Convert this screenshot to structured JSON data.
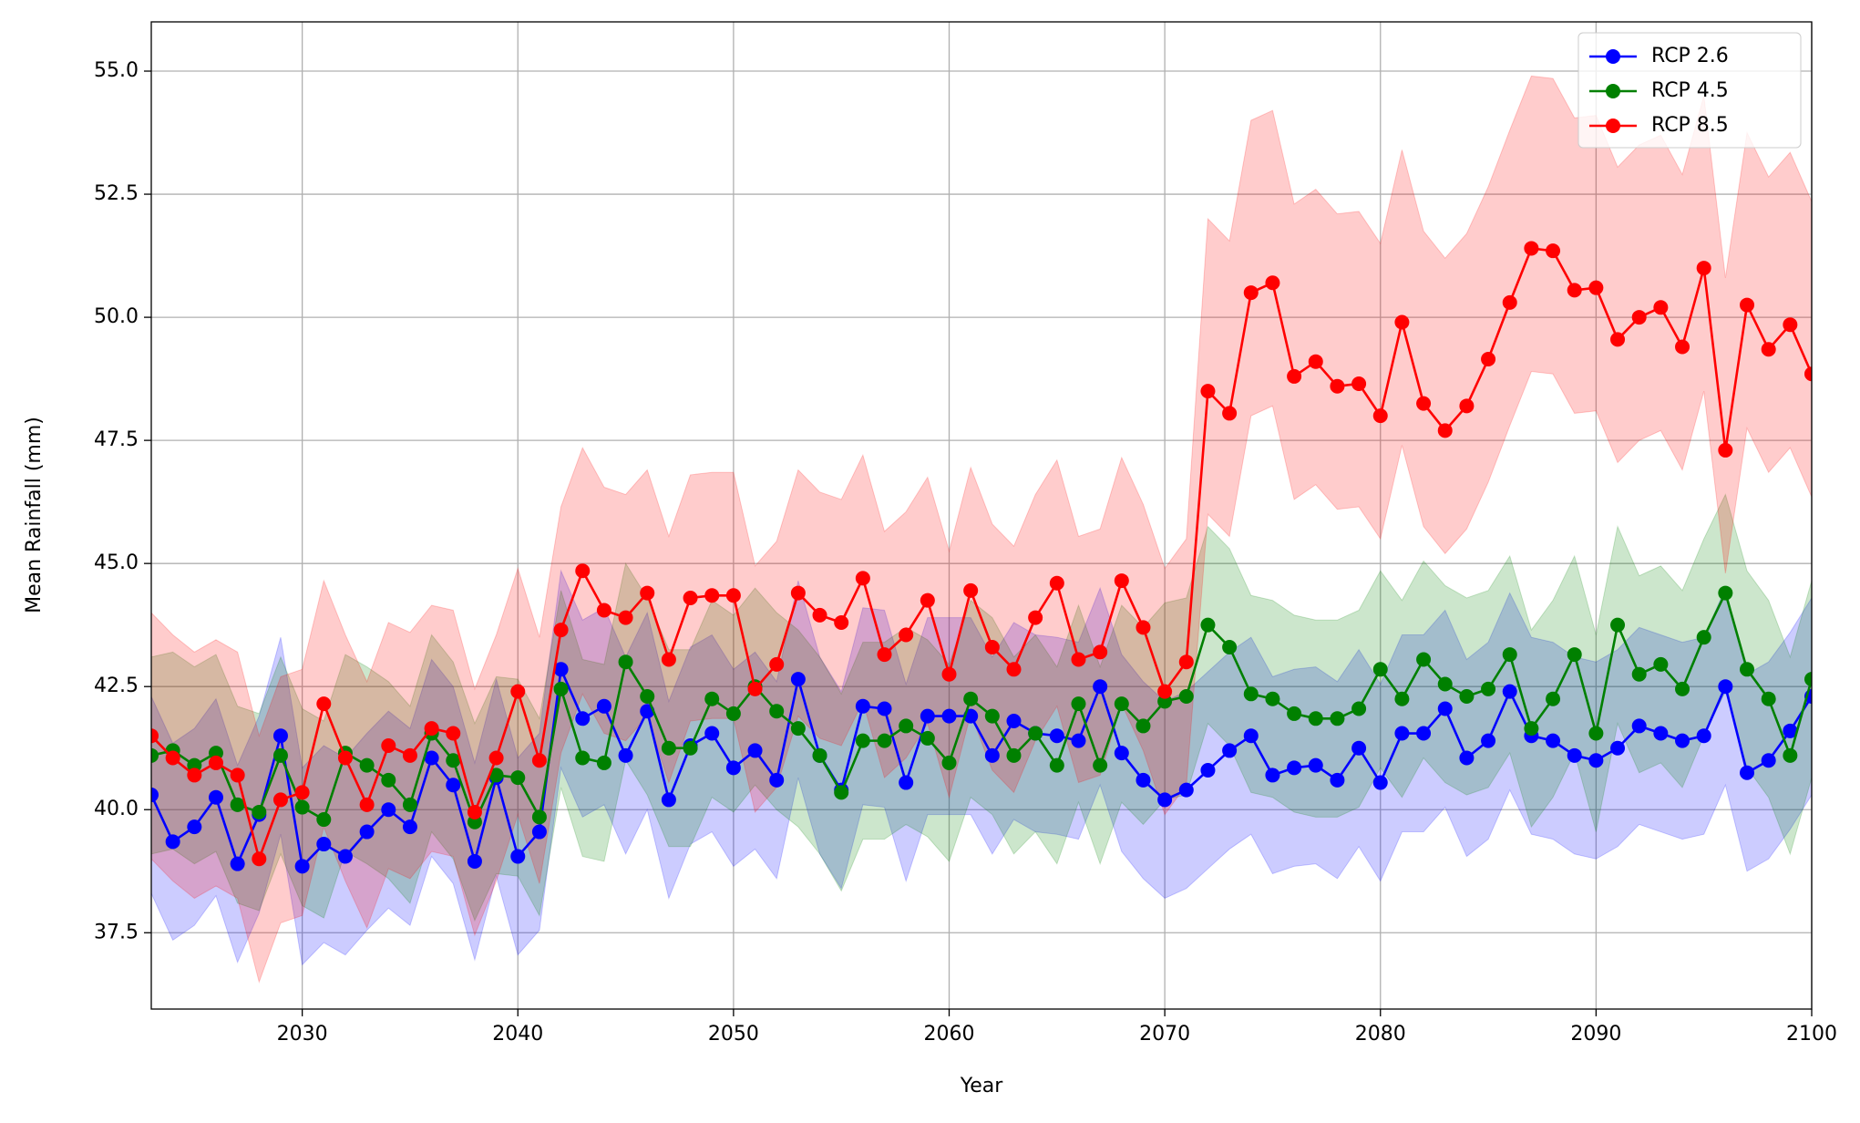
{
  "chart_data": {
    "type": "line",
    "x_label": "Year",
    "y_label": "Mean Rainfall (mm)",
    "x": [
      2023,
      2024,
      2025,
      2026,
      2027,
      2028,
      2029,
      2030,
      2031,
      2032,
      2033,
      2034,
      2035,
      2036,
      2037,
      2038,
      2039,
      2040,
      2041,
      2042,
      2043,
      2044,
      2045,
      2046,
      2047,
      2048,
      2049,
      2050,
      2051,
      2052,
      2053,
      2054,
      2055,
      2056,
      2057,
      2058,
      2059,
      2060,
      2061,
      2062,
      2063,
      2064,
      2065,
      2066,
      2067,
      2068,
      2069,
      2070,
      2071,
      2072,
      2073,
      2074,
      2075,
      2076,
      2077,
      2078,
      2079,
      2080,
      2081,
      2082,
      2083,
      2084,
      2085,
      2086,
      2087,
      2088,
      2089,
      2090,
      2091,
      2092,
      2093,
      2094,
      2095,
      2096,
      2097,
      2098,
      2099,
      2100
    ],
    "xlim": [
      2023,
      2100
    ],
    "xticks": [
      2030,
      2040,
      2050,
      2060,
      2070,
      2080,
      2090,
      2100
    ],
    "ylim": [
      35.95,
      56.0
    ],
    "yticks": [
      37.5,
      {
        "value": 40,
        "label": "40.0"
      },
      42.5,
      {
        "value": 45,
        "label": "45.0"
      },
      47.5,
      {
        "value": 50,
        "label": "50.0"
      },
      52.5,
      {
        "value": 55,
        "label": "55.0"
      }
    ],
    "grid": true,
    "legend": "upper right",
    "series": [
      {
        "name": "RCP 2.6",
        "color": "#0000ff",
        "values": [
          40.3,
          39.35,
          39.65,
          40.25,
          38.9,
          39.9,
          41.5,
          38.85,
          39.3,
          39.05,
          39.55,
          40.0,
          39.65,
          41.05,
          40.5,
          38.95,
          40.65,
          39.05,
          39.55,
          42.85,
          41.85,
          42.1,
          41.1,
          42.0,
          40.2,
          41.3,
          41.55,
          40.85,
          41.2,
          40.6,
          42.65,
          41.1,
          40.4,
          42.1,
          42.05,
          40.55,
          41.9,
          41.9,
          41.9,
          41.1,
          41.8,
          41.55,
          41.5,
          41.4,
          42.5,
          41.15,
          40.6,
          40.2,
          40.4,
          40.8,
          41.2,
          41.5,
          40.7,
          40.85,
          40.9,
          40.6,
          41.25,
          40.55,
          41.55,
          41.55,
          42.05,
          41.05,
          41.4,
          42.4,
          41.5,
          41.4,
          41.1,
          41.0,
          41.25,
          41.7,
          41.55,
          41.4,
          41.5,
          42.5,
          40.75,
          41.0,
          41.6,
          42.3
        ],
        "lower": [
          38.3,
          37.35,
          37.65,
          38.25,
          36.9,
          37.9,
          39.5,
          36.85,
          37.3,
          37.05,
          37.55,
          38.0,
          37.65,
          39.05,
          38.5,
          36.95,
          38.65,
          37.05,
          37.55,
          40.85,
          39.85,
          40.1,
          39.1,
          40.0,
          38.2,
          39.3,
          39.55,
          38.85,
          39.2,
          38.6,
          40.65,
          39.1,
          38.4,
          40.1,
          40.05,
          38.55,
          39.9,
          39.9,
          39.9,
          39.1,
          39.8,
          39.55,
          39.5,
          39.4,
          40.5,
          39.15,
          38.6,
          38.2,
          38.4,
          38.8,
          39.2,
          39.5,
          38.7,
          38.85,
          38.9,
          38.6,
          39.25,
          38.55,
          39.55,
          39.55,
          40.05,
          39.05,
          39.4,
          40.4,
          39.5,
          39.4,
          39.1,
          39.0,
          39.25,
          39.7,
          39.55,
          39.4,
          39.5,
          40.5,
          38.75,
          39.0,
          39.6,
          40.3
        ],
        "upper": [
          42.3,
          41.35,
          41.65,
          42.25,
          40.9,
          41.9,
          43.5,
          40.85,
          41.3,
          41.05,
          41.55,
          42.0,
          41.65,
          43.05,
          42.5,
          40.95,
          42.65,
          41.05,
          41.55,
          44.85,
          43.85,
          44.1,
          43.1,
          44.0,
          42.2,
          43.3,
          43.55,
          42.85,
          43.2,
          42.6,
          44.65,
          43.1,
          42.4,
          44.1,
          44.05,
          42.55,
          43.9,
          43.9,
          43.9,
          43.1,
          43.8,
          43.55,
          43.5,
          43.4,
          44.5,
          43.15,
          42.6,
          42.2,
          42.4,
          42.8,
          43.2,
          43.5,
          42.7,
          42.85,
          42.9,
          42.6,
          43.25,
          42.55,
          43.55,
          43.55,
          44.05,
          43.05,
          43.4,
          44.4,
          43.5,
          43.4,
          43.1,
          43.0,
          43.25,
          43.7,
          43.55,
          43.4,
          43.5,
          44.5,
          42.75,
          43.0,
          43.6,
          44.3
        ]
      },
      {
        "name": "RCP 4.5",
        "color": "#008000",
        "values": [
          41.1,
          41.2,
          40.9,
          41.15,
          40.1,
          39.95,
          41.1,
          40.05,
          39.8,
          41.15,
          40.9,
          40.6,
          40.1,
          41.55,
          41.0,
          39.75,
          40.7,
          40.65,
          39.85,
          42.45,
          41.05,
          40.95,
          43.0,
          42.3,
          41.25,
          41.25,
          42.25,
          41.95,
          42.5,
          42.0,
          41.65,
          41.1,
          40.35,
          41.4,
          41.4,
          41.7,
          41.45,
          40.95,
          42.25,
          41.9,
          41.1,
          41.55,
          40.9,
          42.15,
          40.9,
          42.15,
          41.7,
          42.2,
          42.3,
          43.75,
          43.3,
          42.35,
          42.25,
          41.95,
          41.85,
          41.85,
          42.05,
          42.85,
          42.25,
          43.05,
          42.55,
          42.3,
          42.45,
          43.15,
          41.65,
          42.25,
          43.15,
          41.55,
          43.75,
          42.75,
          42.95,
          42.45,
          43.5,
          44.4,
          42.85,
          42.25,
          41.1,
          42.65
        ],
        "lower": [
          39.1,
          39.2,
          38.9,
          39.15,
          38.1,
          37.95,
          39.1,
          38.05,
          37.8,
          39.15,
          38.9,
          38.6,
          38.1,
          39.55,
          39.0,
          37.75,
          38.7,
          38.65,
          37.85,
          40.45,
          39.05,
          38.95,
          41.0,
          40.3,
          39.25,
          39.25,
          40.25,
          39.95,
          40.5,
          40.0,
          39.65,
          39.1,
          38.35,
          39.4,
          39.4,
          39.7,
          39.45,
          38.95,
          40.25,
          39.9,
          39.1,
          39.55,
          38.9,
          40.15,
          38.9,
          40.15,
          39.7,
          40.2,
          40.3,
          41.75,
          41.3,
          40.35,
          40.25,
          39.95,
          39.85,
          39.85,
          40.05,
          40.85,
          40.25,
          41.05,
          40.55,
          40.3,
          40.45,
          41.15,
          39.65,
          40.25,
          41.15,
          39.55,
          41.75,
          40.75,
          40.95,
          40.45,
          41.5,
          42.4,
          40.85,
          40.25,
          39.1,
          40.65
        ],
        "upper": [
          43.1,
          43.2,
          42.9,
          43.15,
          42.1,
          41.95,
          43.1,
          42.05,
          41.8,
          43.15,
          42.9,
          42.6,
          42.1,
          43.55,
          43.0,
          41.75,
          42.7,
          42.65,
          41.85,
          44.45,
          43.05,
          42.95,
          45.0,
          44.3,
          43.25,
          43.25,
          44.25,
          43.95,
          44.5,
          44.0,
          43.65,
          43.1,
          42.35,
          43.4,
          43.4,
          43.7,
          43.45,
          42.95,
          44.25,
          43.9,
          43.1,
          43.55,
          42.9,
          44.15,
          42.9,
          44.15,
          43.7,
          44.2,
          44.3,
          45.75,
          45.3,
          44.35,
          44.25,
          43.95,
          43.85,
          43.85,
          44.05,
          44.85,
          44.25,
          45.05,
          44.55,
          44.3,
          44.45,
          45.15,
          43.65,
          44.25,
          45.15,
          43.55,
          45.75,
          44.75,
          44.95,
          44.45,
          45.5,
          46.4,
          44.85,
          44.25,
          43.1,
          44.65
        ]
      },
      {
        "name": "RCP 8.5",
        "color": "#ff0000",
        "values": [
          41.5,
          41.05,
          40.7,
          40.95,
          40.7,
          39.0,
          40.2,
          40.35,
          42.15,
          41.05,
          40.1,
          41.3,
          41.1,
          41.65,
          41.55,
          39.95,
          41.05,
          42.4,
          41.0,
          43.65,
          44.85,
          44.05,
          43.9,
          44.4,
          43.05,
          44.3,
          44.35,
          44.35,
          42.45,
          42.95,
          44.4,
          43.95,
          43.8,
          44.7,
          43.15,
          43.55,
          44.25,
          42.75,
          44.45,
          43.3,
          42.85,
          43.9,
          44.6,
          43.05,
          43.2,
          44.65,
          43.7,
          42.4,
          43.0,
          48.5,
          48.05,
          50.5,
          50.7,
          48.8,
          49.1,
          48.6,
          48.65,
          48.0,
          49.9,
          48.25,
          47.7,
          48.2,
          49.15,
          50.3,
          51.4,
          51.35,
          50.55,
          50.6,
          49.55,
          50.0,
          50.2,
          49.4,
          51.0,
          47.3,
          50.25,
          49.35,
          49.85,
          48.85
        ],
        "lower": [
          39.0,
          38.55,
          38.2,
          38.45,
          38.2,
          36.5,
          37.7,
          37.85,
          39.65,
          38.55,
          37.6,
          38.8,
          38.6,
          39.15,
          39.05,
          37.45,
          38.55,
          39.9,
          38.5,
          41.15,
          42.35,
          41.55,
          41.4,
          41.9,
          40.55,
          41.8,
          41.85,
          41.85,
          39.95,
          40.45,
          41.9,
          41.45,
          41.3,
          42.2,
          40.65,
          41.05,
          41.75,
          40.25,
          41.95,
          40.8,
          40.35,
          41.4,
          42.1,
          40.55,
          40.7,
          42.15,
          41.2,
          39.9,
          40.5,
          46.0,
          45.55,
          48.0,
          48.2,
          46.3,
          46.6,
          46.1,
          46.15,
          45.5,
          47.4,
          45.75,
          45.2,
          45.7,
          46.65,
          47.8,
          48.9,
          48.85,
          48.05,
          48.1,
          47.05,
          47.5,
          47.7,
          46.9,
          48.5,
          44.8,
          47.75,
          46.85,
          47.35,
          46.35
        ],
        "upper": [
          44.0,
          43.55,
          43.2,
          43.45,
          43.2,
          41.5,
          42.7,
          42.85,
          44.65,
          43.55,
          42.6,
          43.8,
          43.6,
          44.15,
          44.05,
          42.45,
          43.55,
          44.9,
          43.5,
          46.15,
          47.35,
          46.55,
          46.4,
          46.9,
          45.55,
          46.8,
          46.85,
          46.85,
          44.95,
          45.45,
          46.9,
          46.45,
          46.3,
          47.2,
          45.65,
          46.05,
          46.75,
          45.25,
          46.95,
          45.8,
          45.35,
          46.4,
          47.1,
          45.55,
          45.7,
          47.15,
          46.2,
          44.9,
          45.5,
          52.0,
          51.55,
          54.0,
          54.2,
          52.3,
          52.6,
          52.1,
          52.15,
          51.5,
          53.4,
          51.75,
          51.2,
          51.7,
          52.65,
          53.8,
          54.9,
          54.85,
          54.05,
          54.1,
          53.05,
          53.5,
          53.7,
          52.9,
          54.5,
          50.8,
          53.75,
          52.85,
          53.35,
          52.35
        ]
      }
    ]
  }
}
